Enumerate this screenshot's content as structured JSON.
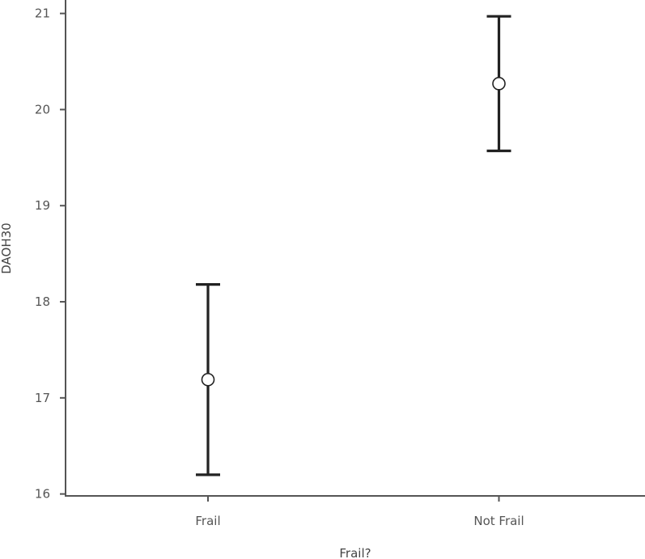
{
  "chart_data": {
    "type": "errorbar",
    "xlabel": "Frail?",
    "ylabel": "DAOH30",
    "categories": [
      "Frail",
      "Not Frail"
    ],
    "points": [
      {
        "category": "Frail",
        "mean": 17.19,
        "lower": 16.2,
        "upper": 18.18
      },
      {
        "category": "Not Frail",
        "mean": 20.27,
        "lower": 19.57,
        "upper": 20.97
      }
    ],
    "ylim": [
      15.98,
      21.14
    ],
    "yticks": [
      16,
      17,
      18,
      19,
      20,
      21
    ],
    "grid": false,
    "legend": "none"
  }
}
